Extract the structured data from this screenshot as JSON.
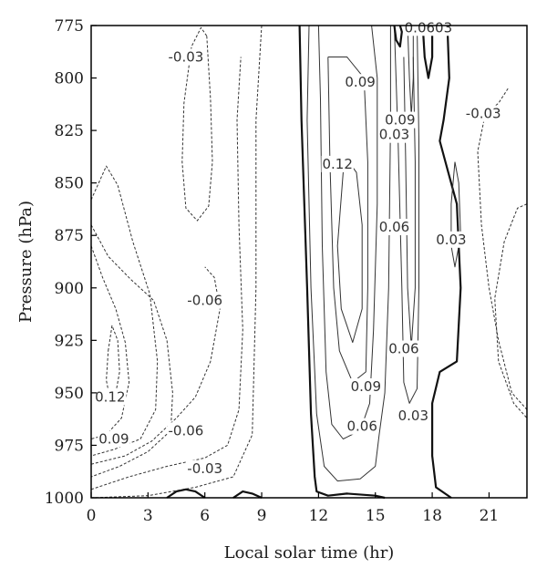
{
  "chart_data": {
    "type": "contour",
    "title": "",
    "xlabel": "Local solar time (hr)",
    "ylabel": "Pressure (hPa)",
    "xlim": [
      0,
      23
    ],
    "ylim": [
      1000,
      775
    ],
    "y_inverted": true,
    "x_ticks": [
      0,
      3,
      6,
      9,
      12,
      15,
      18,
      21
    ],
    "y_ticks": [
      775,
      800,
      825,
      850,
      875,
      900,
      925,
      950,
      975,
      1000
    ],
    "grid": false,
    "legend": "none",
    "line_styles": {
      "positive": "solid",
      "zero": "solid-bold",
      "negative": "dashed"
    },
    "colors": {
      "lines": "#333333",
      "axis": "#000000",
      "background": "#ffffff"
    },
    "contour_labels": [
      {
        "text": "-0.03",
        "x": 5.0,
        "y": 790
      },
      {
        "text": "-0.06",
        "x": 6.0,
        "y": 906
      },
      {
        "text": "0.12",
        "x": 1.0,
        "y": 952
      },
      {
        "text": "0.09",
        "x": 1.2,
        "y": 972
      },
      {
        "text": "-0.06",
        "x": 5.0,
        "y": 968
      },
      {
        "text": "-0.03",
        "x": 6.0,
        "y": 986
      },
      {
        "text": "0.09",
        "x": 14.2,
        "y": 802
      },
      {
        "text": "0.09",
        "x": 16.3,
        "y": 820
      },
      {
        "text": "0.03",
        "x": 16.0,
        "y": 827
      },
      {
        "text": "-0.03",
        "x": 20.7,
        "y": 817
      },
      {
        "text": "0.12",
        "x": 13.0,
        "y": 841
      },
      {
        "text": "0.06",
        "x": 16.0,
        "y": 871
      },
      {
        "text": "0.03",
        "x": 19.0,
        "y": 877
      },
      {
        "text": "0.06",
        "x": 16.5,
        "y": 929
      },
      {
        "text": "0.09",
        "x": 14.5,
        "y": 947
      },
      {
        "text": "0.06",
        "x": 14.3,
        "y": 966
      },
      {
        "text": "0.03",
        "x": 17.0,
        "y": 961
      },
      {
        "text": "0.0603",
        "x": 17.8,
        "y": 776
      }
    ],
    "contours": [
      {
        "name": "neg-lobe-upper",
        "style": "dashed",
        "points": [
          [
            6.1,
            780
          ],
          [
            6.3,
            810
          ],
          [
            6.4,
            840
          ],
          [
            6.2,
            861
          ],
          [
            5.6,
            868
          ],
          [
            5.0,
            862
          ],
          [
            4.8,
            840
          ],
          [
            4.9,
            812
          ],
          [
            5.3,
            785
          ],
          [
            5.8,
            776
          ],
          [
            6.1,
            780
          ]
        ]
      },
      {
        "name": "neg-right-upper",
        "style": "dashed",
        "points": [
          [
            22.0,
            805
          ],
          [
            21.5,
            812
          ],
          [
            20.8,
            817
          ],
          [
            20.4,
            835
          ],
          [
            20.6,
            870
          ],
          [
            21.0,
            900
          ],
          [
            21.5,
            925
          ],
          [
            22.2,
            950
          ],
          [
            23,
            958
          ]
        ]
      },
      {
        "name": "neg-right-outer",
        "style": "dashed",
        "points": [
          [
            23,
            860
          ],
          [
            22.5,
            862
          ],
          [
            21.8,
            878
          ],
          [
            21.3,
            905
          ],
          [
            21.5,
            935
          ],
          [
            22.3,
            955
          ],
          [
            23,
            962
          ]
        ]
      },
      {
        "name": "neg-left-inner",
        "style": "dashed",
        "points": [
          [
            0.9,
            930
          ],
          [
            1.1,
            918
          ],
          [
            1.4,
            925
          ],
          [
            1.5,
            940
          ],
          [
            1.3,
            950
          ],
          [
            1.0,
            953
          ],
          [
            0.8,
            944
          ],
          [
            0.9,
            930
          ]
        ]
      },
      {
        "name": "neg-left-outer",
        "style": "dashed",
        "points": [
          [
            0,
            880
          ],
          [
            0.6,
            895
          ],
          [
            1.3,
            910
          ],
          [
            1.8,
            926
          ],
          [
            2.0,
            945
          ],
          [
            1.6,
            962
          ],
          [
            0.8,
            970
          ],
          [
            0,
            972
          ]
        ]
      },
      {
        "name": "neg-left-ring2",
        "style": "dashed",
        "points": [
          [
            0,
            858
          ],
          [
            0.8,
            842
          ],
          [
            1.4,
            851
          ],
          [
            2.2,
            878
          ],
          [
            3.1,
            903
          ],
          [
            3.5,
            935
          ],
          [
            3.4,
            958
          ],
          [
            2.6,
            972
          ],
          [
            1.2,
            977
          ],
          [
            0,
            980
          ]
        ]
      },
      {
        "name": "neg-left-ring3",
        "style": "dashed",
        "points": [
          [
            0,
            870
          ],
          [
            0.9,
            885
          ],
          [
            2.1,
            896
          ],
          [
            3.3,
            906
          ],
          [
            4.0,
            925
          ],
          [
            4.3,
            950
          ],
          [
            4.2,
            968
          ],
          [
            3.0,
            978
          ],
          [
            1.5,
            985
          ],
          [
            0,
            990
          ]
        ]
      },
      {
        "name": "neg-06-mid",
        "style": "dashed",
        "points": [
          [
            0,
            984
          ],
          [
            1.8,
            980
          ],
          [
            3.2,
            973
          ],
          [
            4.5,
            962
          ],
          [
            5.5,
            952
          ],
          [
            6.3,
            935
          ],
          [
            6.8,
            910
          ],
          [
            6.5,
            895
          ],
          [
            6.0,
            890
          ]
        ]
      },
      {
        "name": "neg-03-outer",
        "style": "dashed",
        "points": [
          [
            0,
            996
          ],
          [
            2.0,
            990
          ],
          [
            4.0,
            985
          ],
          [
            6.0,
            981
          ],
          [
            7.2,
            975
          ],
          [
            7.8,
            958
          ],
          [
            8.0,
            920
          ],
          [
            7.8,
            870
          ],
          [
            7.7,
            820
          ],
          [
            7.9,
            790
          ]
        ]
      },
      {
        "name": "neg-03-far",
        "style": "dashed",
        "points": [
          [
            0,
            1000
          ],
          [
            3.0,
            999
          ],
          [
            5.5,
            995
          ],
          [
            7.5,
            990
          ],
          [
            8.5,
            970
          ],
          [
            8.7,
            900
          ],
          [
            8.7,
            820
          ],
          [
            9.0,
            775
          ]
        ]
      },
      {
        "name": "zero-left",
        "style": "bold",
        "points": [
          [
            11.0,
            775
          ],
          [
            11.1,
            820
          ],
          [
            11.4,
            900
          ],
          [
            11.6,
            960
          ],
          [
            11.8,
            990
          ],
          [
            11.9,
            997
          ],
          [
            12.5,
            999
          ],
          [
            13.5,
            998
          ],
          [
            15.0,
            999
          ],
          [
            15.5,
            1000
          ]
        ]
      },
      {
        "name": "zero-bottom-bumps",
        "style": "bold",
        "points": [
          [
            4.0,
            1000
          ],
          [
            4.5,
            997
          ],
          [
            5.0,
            996
          ],
          [
            5.5,
            997
          ],
          [
            6.0,
            1000
          ]
        ]
      },
      {
        "name": "zero-bottom-bumps2",
        "style": "bold",
        "points": [
          [
            7.5,
            1000
          ],
          [
            8.0,
            997
          ],
          [
            8.5,
            998
          ],
          [
            9.0,
            1000
          ]
        ]
      },
      {
        "name": "zero-right",
        "style": "bold",
        "points": [
          [
            18.8,
            775
          ],
          [
            18.9,
            800
          ],
          [
            18.6,
            820
          ],
          [
            18.4,
            830
          ],
          [
            18.7,
            840
          ],
          [
            19.3,
            860
          ],
          [
            19.5,
            900
          ],
          [
            19.3,
            935
          ],
          [
            18.4,
            940
          ],
          [
            18.0,
            955
          ],
          [
            18.0,
            980
          ],
          [
            18.2,
            995
          ],
          [
            19.0,
            1000
          ]
        ]
      },
      {
        "name": "zero-top-small",
        "style": "bold",
        "points": [
          [
            17.5,
            775
          ],
          [
            17.6,
            790
          ],
          [
            17.8,
            800
          ],
          [
            18.0,
            790
          ],
          [
            18.0,
            775
          ]
        ]
      },
      {
        "name": "pos-03-left",
        "style": "solid",
        "points": [
          [
            11.5,
            775
          ],
          [
            11.4,
            820
          ],
          [
            11.6,
            900
          ],
          [
            11.9,
            960
          ],
          [
            12.3,
            985
          ],
          [
            13.0,
            992
          ],
          [
            14.2,
            991
          ],
          [
            15.0,
            985
          ],
          [
            15.2,
            970
          ],
          [
            15.5,
            950
          ],
          [
            15.7,
            900
          ],
          [
            15.8,
            820
          ],
          [
            15.8,
            775
          ]
        ]
      },
      {
        "name": "pos-06-left",
        "style": "solid",
        "points": [
          [
            12.0,
            775
          ],
          [
            12.1,
            810
          ],
          [
            12.2,
            880
          ],
          [
            12.4,
            940
          ],
          [
            12.7,
            965
          ],
          [
            13.3,
            972
          ],
          [
            14.2,
            968
          ],
          [
            14.7,
            955
          ],
          [
            14.9,
            920
          ],
          [
            15.1,
            860
          ],
          [
            15.1,
            800
          ],
          [
            14.8,
            775
          ]
        ]
      },
      {
        "name": "pos-09-left",
        "style": "solid",
        "points": [
          [
            12.5,
            790
          ],
          [
            12.6,
            840
          ],
          [
            12.8,
            900
          ],
          [
            13.1,
            930
          ],
          [
            13.8,
            945
          ],
          [
            14.5,
            940
          ],
          [
            14.6,
            900
          ],
          [
            14.6,
            840
          ],
          [
            14.4,
            800
          ],
          [
            13.5,
            790
          ],
          [
            12.5,
            790
          ]
        ]
      },
      {
        "name": "pos-12-left",
        "style": "solid",
        "points": [
          [
            13.3,
            845
          ],
          [
            13.0,
            880
          ],
          [
            13.2,
            910
          ],
          [
            13.8,
            926
          ],
          [
            14.3,
            910
          ],
          [
            14.3,
            870
          ],
          [
            14.0,
            845
          ],
          [
            13.6,
            840
          ],
          [
            13.3,
            845
          ]
        ]
      },
      {
        "name": "pos-03-right",
        "style": "solid",
        "points": [
          [
            16.0,
            775
          ],
          [
            16.2,
            830
          ],
          [
            16.4,
            900
          ],
          [
            16.5,
            945
          ],
          [
            16.8,
            955
          ],
          [
            17.2,
            948
          ],
          [
            17.3,
            900
          ],
          [
            17.3,
            830
          ],
          [
            17.2,
            775
          ]
        ]
      },
      {
        "name": "pos-06-right",
        "style": "solid",
        "points": [
          [
            16.5,
            790
          ],
          [
            16.6,
            840
          ],
          [
            16.7,
            900
          ],
          [
            16.9,
            928
          ],
          [
            17.1,
            900
          ],
          [
            17.1,
            840
          ],
          [
            17.0,
            790
          ]
        ]
      },
      {
        "name": "pos-09-right",
        "style": "solid",
        "points": [
          [
            16.7,
            775
          ],
          [
            16.8,
            800
          ],
          [
            16.9,
            818
          ],
          [
            17.0,
            800
          ],
          [
            17.0,
            775
          ]
        ]
      },
      {
        "name": "pos-03-far-right",
        "style": "solid",
        "points": [
          [
            19.2,
            840
          ],
          [
            19.0,
            860
          ],
          [
            19.0,
            880
          ],
          [
            19.2,
            890
          ],
          [
            19.5,
            875
          ],
          [
            19.4,
            850
          ],
          [
            19.2,
            840
          ]
        ]
      },
      {
        "name": "pos-bottom-zero-loop",
        "style": "bold",
        "points": [
          [
            16.0,
            775
          ],
          [
            16.1,
            782
          ],
          [
            16.3,
            785
          ],
          [
            16.4,
            778
          ],
          [
            16.3,
            775
          ]
        ]
      }
    ]
  }
}
